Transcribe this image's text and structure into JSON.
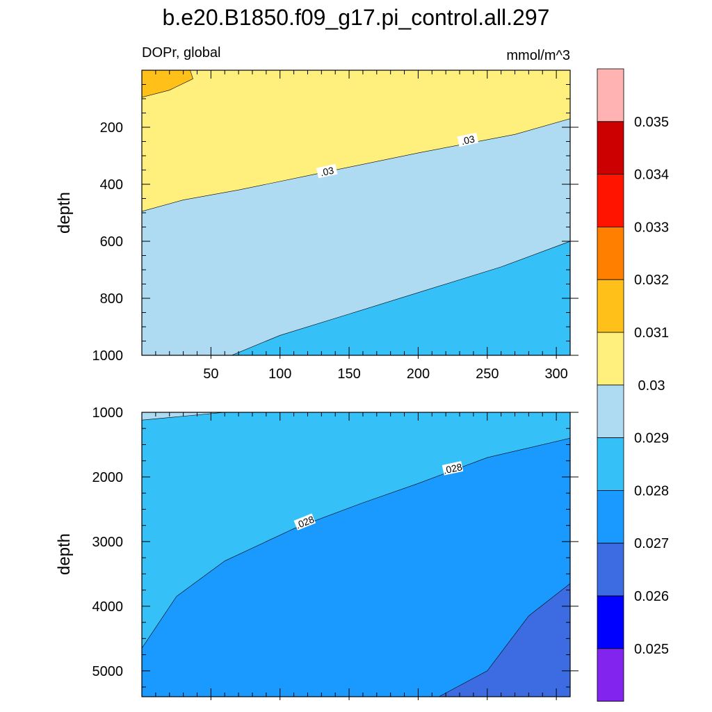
{
  "title": "b.e20.B1850.f09_g17.pi_control.all.297",
  "subtitle_left": "DOPr, global",
  "subtitle_right": "mmol/m^3",
  "colors": {
    "bin_lt_0025": "#8224EE",
    "bin_0025_0026": "#0000FF",
    "bin_0026_0027": "#3D6CE2",
    "bin_0027_0028": "#1A99FF",
    "bin_0028_0029": "#36C0F8",
    "bin_0029_003": "#AEDAF2",
    "bin_003_0031": "#FFF07E",
    "bin_0031_0032": "#FFC01A",
    "bin_0032_0033": "#FF7F00",
    "bin_0033_0034": "#FF1400",
    "bin_0034_0035": "#CC0000",
    "bin_gt_0035": "#FFB3B3"
  },
  "chart_data": [
    {
      "type": "heatmap",
      "panel": "upper",
      "ylabel": "depth",
      "xlim": [
        0,
        310
      ],
      "ylim": [
        1000,
        0
      ],
      "x_ticks": [
        50,
        100,
        150,
        200,
        250,
        300
      ],
      "x_tick_labels": [
        "50",
        "100",
        "150",
        "200",
        "250",
        "300"
      ],
      "y_ticks": [
        200,
        400,
        600,
        800,
        1000
      ],
      "y_tick_labels": [
        "200",
        "400",
        "600",
        "800",
        "1000"
      ],
      "contour_labels": [
        ".03",
        ".03"
      ],
      "regions": [
        {
          "bin": "0.031-0.032",
          "boundary": [
            [
              0,
              0
            ],
            [
              35,
              0
            ],
            [
              37,
              30
            ],
            [
              20,
              70
            ],
            [
              0,
              95
            ]
          ]
        },
        {
          "bin": "0.03-0.031",
          "boundary_03": [
            [
              0,
              495
            ],
            [
              30,
              455
            ],
            [
              70,
              420
            ],
            [
              130,
              360
            ],
            [
              200,
              290
            ],
            [
              270,
              225
            ],
            [
              310,
              170
            ]
          ]
        },
        {
          "bin": "0.028-0.029",
          "boundary_029": [
            [
              65,
              1000
            ],
            [
              100,
              930
            ],
            [
              150,
              855
            ],
            [
              200,
              780
            ],
            [
              260,
              690
            ],
            [
              310,
              600
            ]
          ]
        }
      ],
      "grid": false
    },
    {
      "type": "heatmap",
      "panel": "lower",
      "ylabel": "depth",
      "xlim": [
        0,
        310
      ],
      "ylim": [
        5400,
        1000
      ],
      "y_ticks": [
        1000,
        2000,
        3000,
        4000,
        5000
      ],
      "y_tick_labels": [
        "1000",
        "2000",
        "3000",
        "4000",
        "5000"
      ],
      "contour_labels": [
        ".028",
        ".028"
      ],
      "regions": [
        {
          "bin": "0.029-0.03",
          "boundary": [
            [
              0,
              1000
            ],
            [
              60,
              1000
            ],
            [
              0,
              1120
            ]
          ]
        },
        {
          "bin": "0.027-0.028",
          "boundary_028": [
            [
              0,
              4650
            ],
            [
              25,
              3850
            ],
            [
              60,
              3300
            ],
            [
              110,
              2800
            ],
            [
              160,
              2400
            ],
            [
              200,
              2100
            ],
            [
              250,
              1700
            ],
            [
              310,
              1400
            ]
          ]
        },
        {
          "bin": "0.026-0.027",
          "boundary_027": [
            [
              215,
              5400
            ],
            [
              250,
              5000
            ],
            [
              280,
              4150
            ],
            [
              310,
              3650
            ]
          ]
        }
      ],
      "grid": false
    }
  ],
  "colorbar": {
    "labels": [
      "0.035",
      "0.034",
      "0.033",
      "0.032",
      "0.031",
      "0.03",
      "0.029",
      "0.028",
      "0.027",
      "0.026",
      "0.025"
    ]
  }
}
